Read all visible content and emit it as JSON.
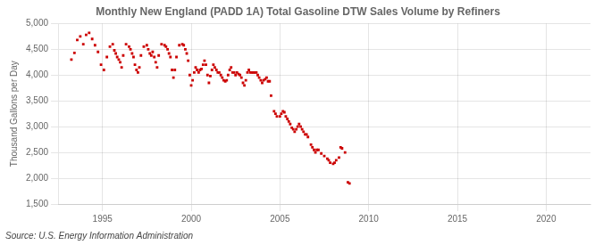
{
  "chart_data": {
    "type": "scatter",
    "title": "Monthly New England (PADD 1A) Total Gasoline DTW Sales Volume by Refiners",
    "ylabel": "Thousand Gallons per Day",
    "annotation": "Source: U.S. Energy Information Administration",
    "color": "#cc0000",
    "marker": "square",
    "grid": true,
    "xlim": [
      1992.5,
      2022.5
    ],
    "xticks": [
      1995,
      2000,
      2005,
      2010,
      2015,
      2020
    ],
    "ylim": [
      1500,
      5000
    ],
    "yticks": [
      {
        "value": 1500,
        "label": "1,500"
      },
      {
        "value": 2000,
        "label": "2,000"
      },
      {
        "value": 2500,
        "label": "2,500"
      },
      {
        "value": 3000,
        "label": "3,000"
      },
      {
        "value": 3500,
        "label": "3,500"
      },
      {
        "value": 4000,
        "label": "4,000"
      },
      {
        "value": 4500,
        "label": "4,500"
      },
      {
        "value": 5000,
        "label": "5,000"
      }
    ],
    "x": [
      1993.25,
      1993.42,
      1993.58,
      1993.75,
      1993.92,
      1994.08,
      1994.25,
      1994.42,
      1994.58,
      1994.75,
      1994.92,
      1995.08,
      1995.25,
      1995.42,
      1995.58,
      1995.67,
      1995.75,
      1995.83,
      1995.92,
      1996.0,
      1996.08,
      1996.17,
      1996.33,
      1996.5,
      1996.58,
      1996.67,
      1996.75,
      1996.83,
      1996.92,
      1997.0,
      1997.08,
      1997.17,
      1997.33,
      1997.5,
      1997.58,
      1997.67,
      1997.75,
      1997.83,
      1997.92,
      1998.0,
      1998.08,
      1998.17,
      1998.33,
      1998.5,
      1998.58,
      1998.67,
      1998.75,
      1998.83,
      1998.92,
      1999.0,
      1999.08,
      1999.17,
      1999.33,
      1999.5,
      1999.58,
      1999.67,
      1999.75,
      1999.83,
      1999.92,
      2000.0,
      2000.08,
      2000.17,
      2000.25,
      2000.33,
      2000.42,
      2000.5,
      2000.58,
      2000.67,
      2000.75,
      2000.83,
      2000.92,
      2001.0,
      2001.08,
      2001.17,
      2001.25,
      2001.33,
      2001.42,
      2001.5,
      2001.58,
      2001.67,
      2001.75,
      2001.83,
      2001.92,
      2002.0,
      2002.08,
      2002.17,
      2002.25,
      2002.33,
      2002.42,
      2002.5,
      2002.58,
      2002.67,
      2002.75,
      2002.83,
      2002.92,
      2003.0,
      2003.08,
      2003.17,
      2003.25,
      2003.33,
      2003.42,
      2003.5,
      2003.58,
      2003.67,
      2003.75,
      2003.83,
      2003.92,
      2004.0,
      2004.08,
      2004.17,
      2004.25,
      2004.33,
      2004.42,
      2004.5,
      2004.67,
      2004.75,
      2004.83,
      2005.0,
      2005.08,
      2005.17,
      2005.25,
      2005.33,
      2005.42,
      2005.5,
      2005.58,
      2005.67,
      2005.75,
      2005.83,
      2005.92,
      2006.0,
      2006.08,
      2006.17,
      2006.25,
      2006.33,
      2006.42,
      2006.5,
      2006.58,
      2006.75,
      2006.83,
      2006.92,
      2007.0,
      2007.08,
      2007.17,
      2007.33,
      2007.5,
      2007.67,
      2007.75,
      2007.83,
      2008.0,
      2008.08,
      2008.17,
      2008.33,
      2008.42,
      2008.5,
      2008.67,
      2008.83,
      2008.92
    ],
    "values": [
      4300,
      4430,
      4680,
      4750,
      4600,
      4780,
      4820,
      4700,
      4580,
      4450,
      4200,
      4100,
      4350,
      4550,
      4600,
      4480,
      4420,
      4350,
      4300,
      4250,
      4150,
      4380,
      4600,
      4550,
      4500,
      4420,
      4350,
      4200,
      4100,
      4050,
      4150,
      4380,
      4550,
      4580,
      4500,
      4420,
      4380,
      4450,
      4350,
      4250,
      4150,
      4380,
      4600,
      4580,
      4550,
      4500,
      4420,
      4350,
      4100,
      3950,
      4100,
      4350,
      4580,
      4600,
      4580,
      4500,
      4420,
      4280,
      4000,
      3800,
      3900,
      4050,
      4150,
      4100,
      4050,
      4100,
      4120,
      4200,
      4280,
      4200,
      4000,
      3850,
      3980,
      4100,
      4200,
      4150,
      4100,
      4050,
      4050,
      4000,
      3950,
      3900,
      3880,
      3900,
      4000,
      4100,
      4150,
      4050,
      4050,
      4000,
      4050,
      4020,
      4000,
      3950,
      3850,
      3800,
      3900,
      4050,
      4100,
      4050,
      4050,
      4050,
      4050,
      4050,
      4000,
      3950,
      3900,
      3850,
      3900,
      3920,
      3950,
      3880,
      3880,
      3600,
      3300,
      3250,
      3200,
      3200,
      3250,
      3300,
      3280,
      3200,
      3150,
      3100,
      3050,
      2980,
      2950,
      2900,
      2950,
      3000,
      3050,
      3000,
      2950,
      2900,
      2850,
      2850,
      2800,
      2650,
      2600,
      2550,
      2500,
      2550,
      2550,
      2480,
      2430,
      2380,
      2350,
      2300,
      2280,
      2300,
      2350,
      2400,
      2600,
      2580,
      2500,
      1920,
      1900
    ]
  }
}
